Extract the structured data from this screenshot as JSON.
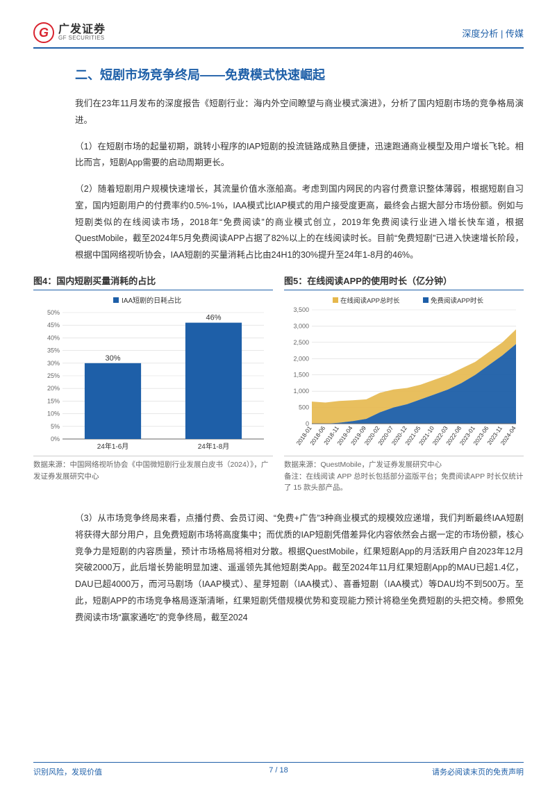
{
  "header": {
    "logo_cn": "广发证券",
    "logo_en": "GF SECURITIES",
    "logo_letter": "G",
    "right": "深度分析 | 传媒"
  },
  "title": "二、短剧市场竞争终局——免费模式快速崛起",
  "para_intro": "我们在23年11月发布的深度报告《短剧行业：海内外空间瞭望与商业模式演进》，分析了国内短剧市场的竞争格局演进。",
  "para_1": "（1）在短剧市场的起量初期，跳转小程序的IAP短剧的投流链路成熟且便捷，迅速跑通商业模型及用户增长飞轮。相比而言，短剧App需要的启动周期更长。",
  "para_2": "（2）随着短剧用户规模快速增长，其流量价值水涨船高。考虑到国内网民的内容付费意识整体薄弱，根据短剧自习室，国内短剧用户的付费率约0.5%-1%，IAA模式比IAP模式的用户接受度更高，最终会占据大部分市场份额。例如与短剧类似的在线阅读市场，2018年“免费阅读”的商业模式创立，2019年免费阅读行业进入增长快车道，根据QuestMobile，截至2024年5月免费阅读APP占据了82%以上的在线阅读时长。目前“免费短剧”已进入快速增长阶段，根据中国网络视听协会，IAA短剧的买量消耗占比由24H1的30%提升至24年1-8月的46%。",
  "para_3": "（3）从市场竞争终局来看，点播付费、会员订阅、“免费+广告”3种商业模式的规模效应递增，我们判断最终IAA短剧将获得大部分用户，且免费短剧市场将高度集中；而优质的IAP短剧凭借差异化内容依然会占据一定的市场份额，核心竞争力是短剧的内容质量，预计市场格局将相对分散。根据QuestMobile，红果短剧App的月活跃用户自2023年12月突破2000万，此后增长势能明显加速、遥遥领先其他短剧类App。截至2024年11月红果短剧App的MAU已超1.4亿，DAU已超4000万，而河马剧场（IAAP模式）、星芽短剧（IAA模式）、喜番短剧（IAA模式）等DAU均不到500万。至此，短剧APP的市场竞争格局逐渐清晰，红果短剧凭借规模优势和变现能力预计将稳坐免费短剧的头把交椅。参照免费阅读市场“赢家通吃”的竞争终局，截至2024",
  "chart4": {
    "title": "图4：国内短剧买量消耗的占比",
    "legend": "IAA短剧的日耗占比",
    "type": "bar",
    "categories": [
      "24年1-6月",
      "24年1-8月"
    ],
    "values": [
      30,
      46
    ],
    "value_labels": [
      "30%",
      "46%"
    ],
    "ylim": [
      0,
      50
    ],
    "ytick_step": 5,
    "yticks": [
      "0%",
      "5%",
      "10%",
      "15%",
      "20%",
      "25%",
      "30%",
      "35%",
      "40%",
      "45%",
      "50%"
    ],
    "bar_color": "#1e5fa8",
    "grid_color": "#d9d9d9",
    "axis_color": "#666666",
    "label_fontsize": 10,
    "source": "数据来源：中国网络视听协会《中国微短剧行业发展白皮书（2024）》，广发证券发展研究中心"
  },
  "chart5": {
    "title": "图5：在线阅读APP的使用时长（亿分钟）",
    "type": "area",
    "legend": [
      {
        "label": "在线阅读APP总时长",
        "color": "#e6b84d"
      },
      {
        "label": "免费阅读APP时长",
        "color": "#1e5fa8"
      }
    ],
    "x_labels": [
      "2018-01",
      "2018-06",
      "2018-11",
      "2019-04",
      "2019-09",
      "2020-02",
      "2020-07",
      "2020-12",
      "2021-05",
      "2021-10",
      "2022-03",
      "2022-08",
      "2023-01",
      "2023-06",
      "2023-11",
      "2024-04"
    ],
    "ylim": [
      0,
      3500
    ],
    "ytick_step": 500,
    "yticks": [
      "0",
      "500",
      "1,000",
      "1,500",
      "2,000",
      "2,500",
      "3,000",
      "3,500"
    ],
    "series_total": [
      680,
      650,
      700,
      720,
      750,
      950,
      1050,
      1100,
      1200,
      1350,
      1500,
      1700,
      1900,
      2200,
      2500,
      2900
    ],
    "series_free": [
      0,
      0,
      30,
      80,
      150,
      350,
      500,
      600,
      750,
      900,
      1050,
      1250,
      1500,
      1800,
      2100,
      2450
    ],
    "grid_color": "#d9d9d9",
    "axis_color": "#666666",
    "label_fontsize": 10,
    "source": "数据来源：QuestMobile，广发证券发展研究中心",
    "note": "备注：在线阅读 APP 总时长包括部分盗版平台；免费阅读APP 时长仅统计了 15 款头部产品。"
  },
  "footer": {
    "left": "识别风险，发现价值",
    "center": "7 / 18",
    "right": "请务必阅读末页的免责声明"
  },
  "colors": {
    "brand_blue": "#1e5fa8",
    "brand_red": "#d9232e",
    "text": "#333333",
    "muted": "#666666"
  }
}
